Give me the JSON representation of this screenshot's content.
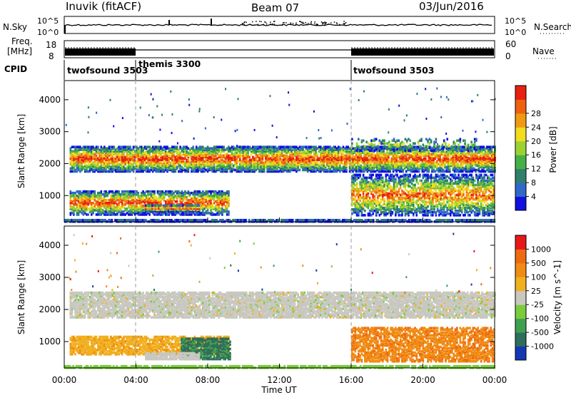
{
  "header": {
    "station": "Inuvik (fitACF)",
    "beam": "Beam 07",
    "date": "03/Jun/2016"
  },
  "status_panels": {
    "nsky_label": "N.Sky",
    "nsky_ticks": [
      "10^5",
      "10^0"
    ],
    "nsearch_label": "N.Search",
    "nsearch_ticks": [
      "10^5",
      "10^0"
    ],
    "freq_label_1": "Freq.",
    "freq_label_2": "[MHz]",
    "freq_ticks": [
      "18",
      "8"
    ],
    "nave_label": "Nave",
    "nave_ticks": [
      "60",
      "0"
    ],
    "cpid_label": "CPID",
    "cpid_segments": [
      {
        "name": "twofsound 3503",
        "start_h": 0,
        "end_h": 4
      },
      {
        "name": "themis 3300",
        "start_h": 4,
        "end_h": 16
      },
      {
        "name": "twofsound 3503",
        "start_h": 16,
        "end_h": 24
      }
    ]
  },
  "chart_data": [
    {
      "type": "heatmap",
      "title": "Power",
      "xlabel": "Time UT",
      "ylabel": "Slant Range [km]",
      "xlim": [
        0,
        24
      ],
      "ylim": [
        180,
        4600
      ],
      "x_ticks": [
        "00:00",
        "04:00",
        "08:00",
        "12:00",
        "16:00",
        "20:00",
        "00:00"
      ],
      "y_ticks": [
        1000,
        2000,
        3000,
        4000
      ],
      "colorbar": {
        "label": "Power [dB]",
        "ticks": [
          "4",
          "8",
          "12",
          "16",
          "20",
          "24",
          "28"
        ],
        "colors": [
          "#1010e0",
          "#3068c8",
          "#2f7f6a",
          "#46b046",
          "#9bd232",
          "#f2dc1e",
          "#f09a14",
          "#ee6010",
          "#e82010"
        ]
      },
      "bands": [
        {
          "t_start": 0.3,
          "t_end": 24,
          "range_km": [
            1800,
            2500
          ],
          "peak_db": 28
        },
        {
          "t_start": 0.3,
          "t_end": 9.2,
          "range_km": [
            400,
            1100
          ],
          "peak_db": 28
        },
        {
          "t_start": 16,
          "t_end": 24,
          "range_km": [
            400,
            1600
          ],
          "peak_db": 24
        }
      ]
    },
    {
      "type": "heatmap",
      "title": "Velocity",
      "xlabel": "Time UT",
      "ylabel": "Slant Range [km]",
      "xlim": [
        0,
        24
      ],
      "ylim": [
        180,
        4600
      ],
      "x_ticks": [
        "00:00",
        "04:00",
        "08:00",
        "12:00",
        "16:00",
        "20:00",
        "00:00"
      ],
      "y_ticks": [
        1000,
        2000,
        3000,
        4000
      ],
      "colorbar": {
        "label": "Velocity [m s^-1]",
        "ticks": [
          "1000",
          "500",
          "100",
          "25",
          "-25",
          "-100",
          "-500",
          "-1000"
        ],
        "colors": [
          "#1438b4",
          "#2f6e5a",
          "#3f9f50",
          "#7acc3c",
          "#c8c8c0",
          "#f0b020",
          "#f08c14",
          "#ee6a10",
          "#e81818"
        ]
      }
    }
  ],
  "time_label": "Time UT"
}
